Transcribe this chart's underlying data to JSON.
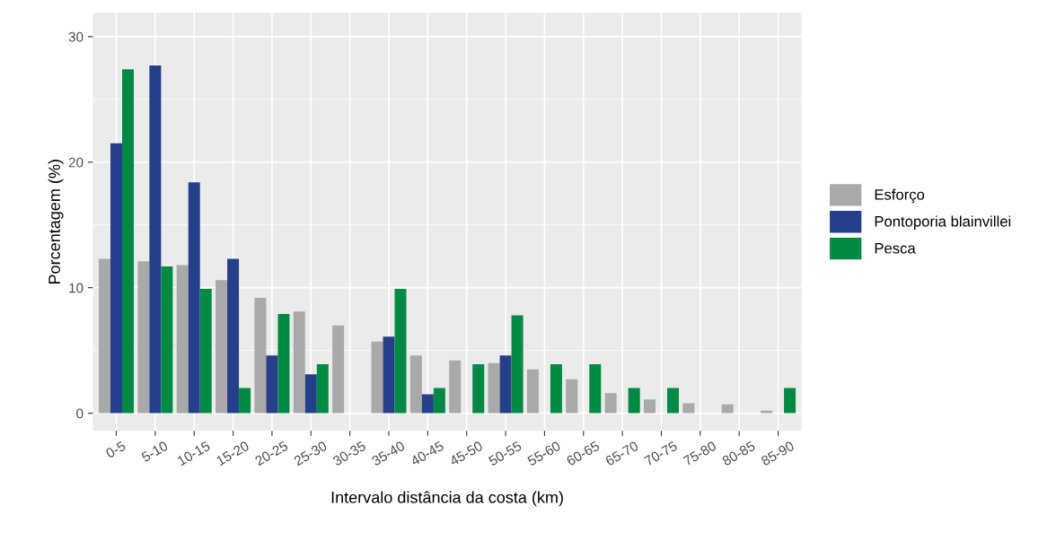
{
  "chart_data": {
    "type": "bar",
    "xlabel": "Intervalo distância da costa (km)",
    "ylabel": "Porcentagem (%)",
    "categories": [
      "0-5",
      "5-10",
      "10-15",
      "15-20",
      "20-25",
      "25-30",
      "30-35",
      "35-40",
      "40-45",
      "45-50",
      "50-55",
      "55-60",
      "60-65",
      "65-70",
      "70-75",
      "75-80",
      "80-85",
      "85-90"
    ],
    "series": [
      {
        "name": "Esforço",
        "color": "#a9a9a9",
        "values": [
          12.3,
          12.1,
          11.8,
          10.6,
          9.2,
          8.1,
          7.0,
          5.7,
          4.6,
          4.2,
          4.0,
          3.5,
          2.7,
          1.6,
          1.1,
          0.8,
          0.7,
          0.2
        ]
      },
      {
        "name": "Pontoporia blainvillei",
        "color": "#263f8a",
        "values": [
          21.5,
          27.7,
          18.4,
          12.3,
          4.6,
          3.1,
          null,
          6.1,
          1.5,
          null,
          4.6,
          null,
          null,
          null,
          null,
          null,
          null,
          null
        ]
      },
      {
        "name": "Pesca",
        "color": "#008a44",
        "values": [
          27.4,
          11.7,
          9.9,
          2.0,
          7.9,
          3.9,
          null,
          9.9,
          2.0,
          3.9,
          7.8,
          3.9,
          3.9,
          2.0,
          2.0,
          null,
          null,
          2.0
        ]
      }
    ],
    "ylim": [
      -1.4,
      31.9
    ],
    "yticks": [
      0,
      10,
      20,
      30
    ],
    "grid": true,
    "legend": "right"
  }
}
